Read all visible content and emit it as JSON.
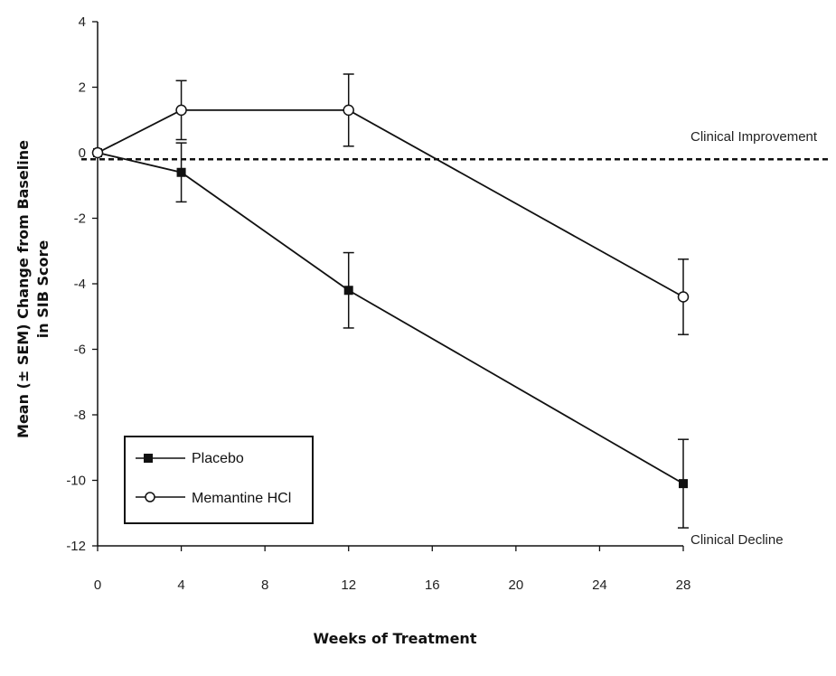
{
  "chart_data": {
    "type": "line",
    "xlabel": "Weeks of Treatment",
    "ylabel_lines": [
      "Mean (± SEM) Change from Baseline",
      "in SIB Score"
    ],
    "xlim": [
      0,
      28
    ],
    "ylim": [
      -12,
      4
    ],
    "x_ticks": [
      0,
      4,
      8,
      12,
      16,
      20,
      24,
      28
    ],
    "y_ticks": [
      4,
      2,
      0,
      -2,
      -4,
      -6,
      -8,
      -10,
      -12
    ],
    "reference_line": {
      "y": -0.2,
      "style": "dashed"
    },
    "annotations": [
      {
        "text": "Clinical Improvement",
        "x": 28,
        "y": 0.5
      },
      {
        "text": "Clinical Decline",
        "x": 28,
        "y": -11.8
      }
    ],
    "series": [
      {
        "name": "Placebo",
        "marker": "filled-square",
        "color": "#111111",
        "x": [
          0,
          4,
          12,
          28
        ],
        "y": [
          0,
          -0.6,
          -4.2,
          -10.1
        ],
        "err": [
          0,
          0.9,
          1.15,
          1.35
        ]
      },
      {
        "name": "Memantine HCl",
        "marker": "open-circle",
        "color": "#111111",
        "x": [
          0,
          4,
          12,
          28
        ],
        "y": [
          0,
          1.3,
          1.3,
          -4.4
        ],
        "err": [
          0,
          0.9,
          1.1,
          1.15
        ]
      }
    ],
    "legend_position": "bottom-left"
  }
}
